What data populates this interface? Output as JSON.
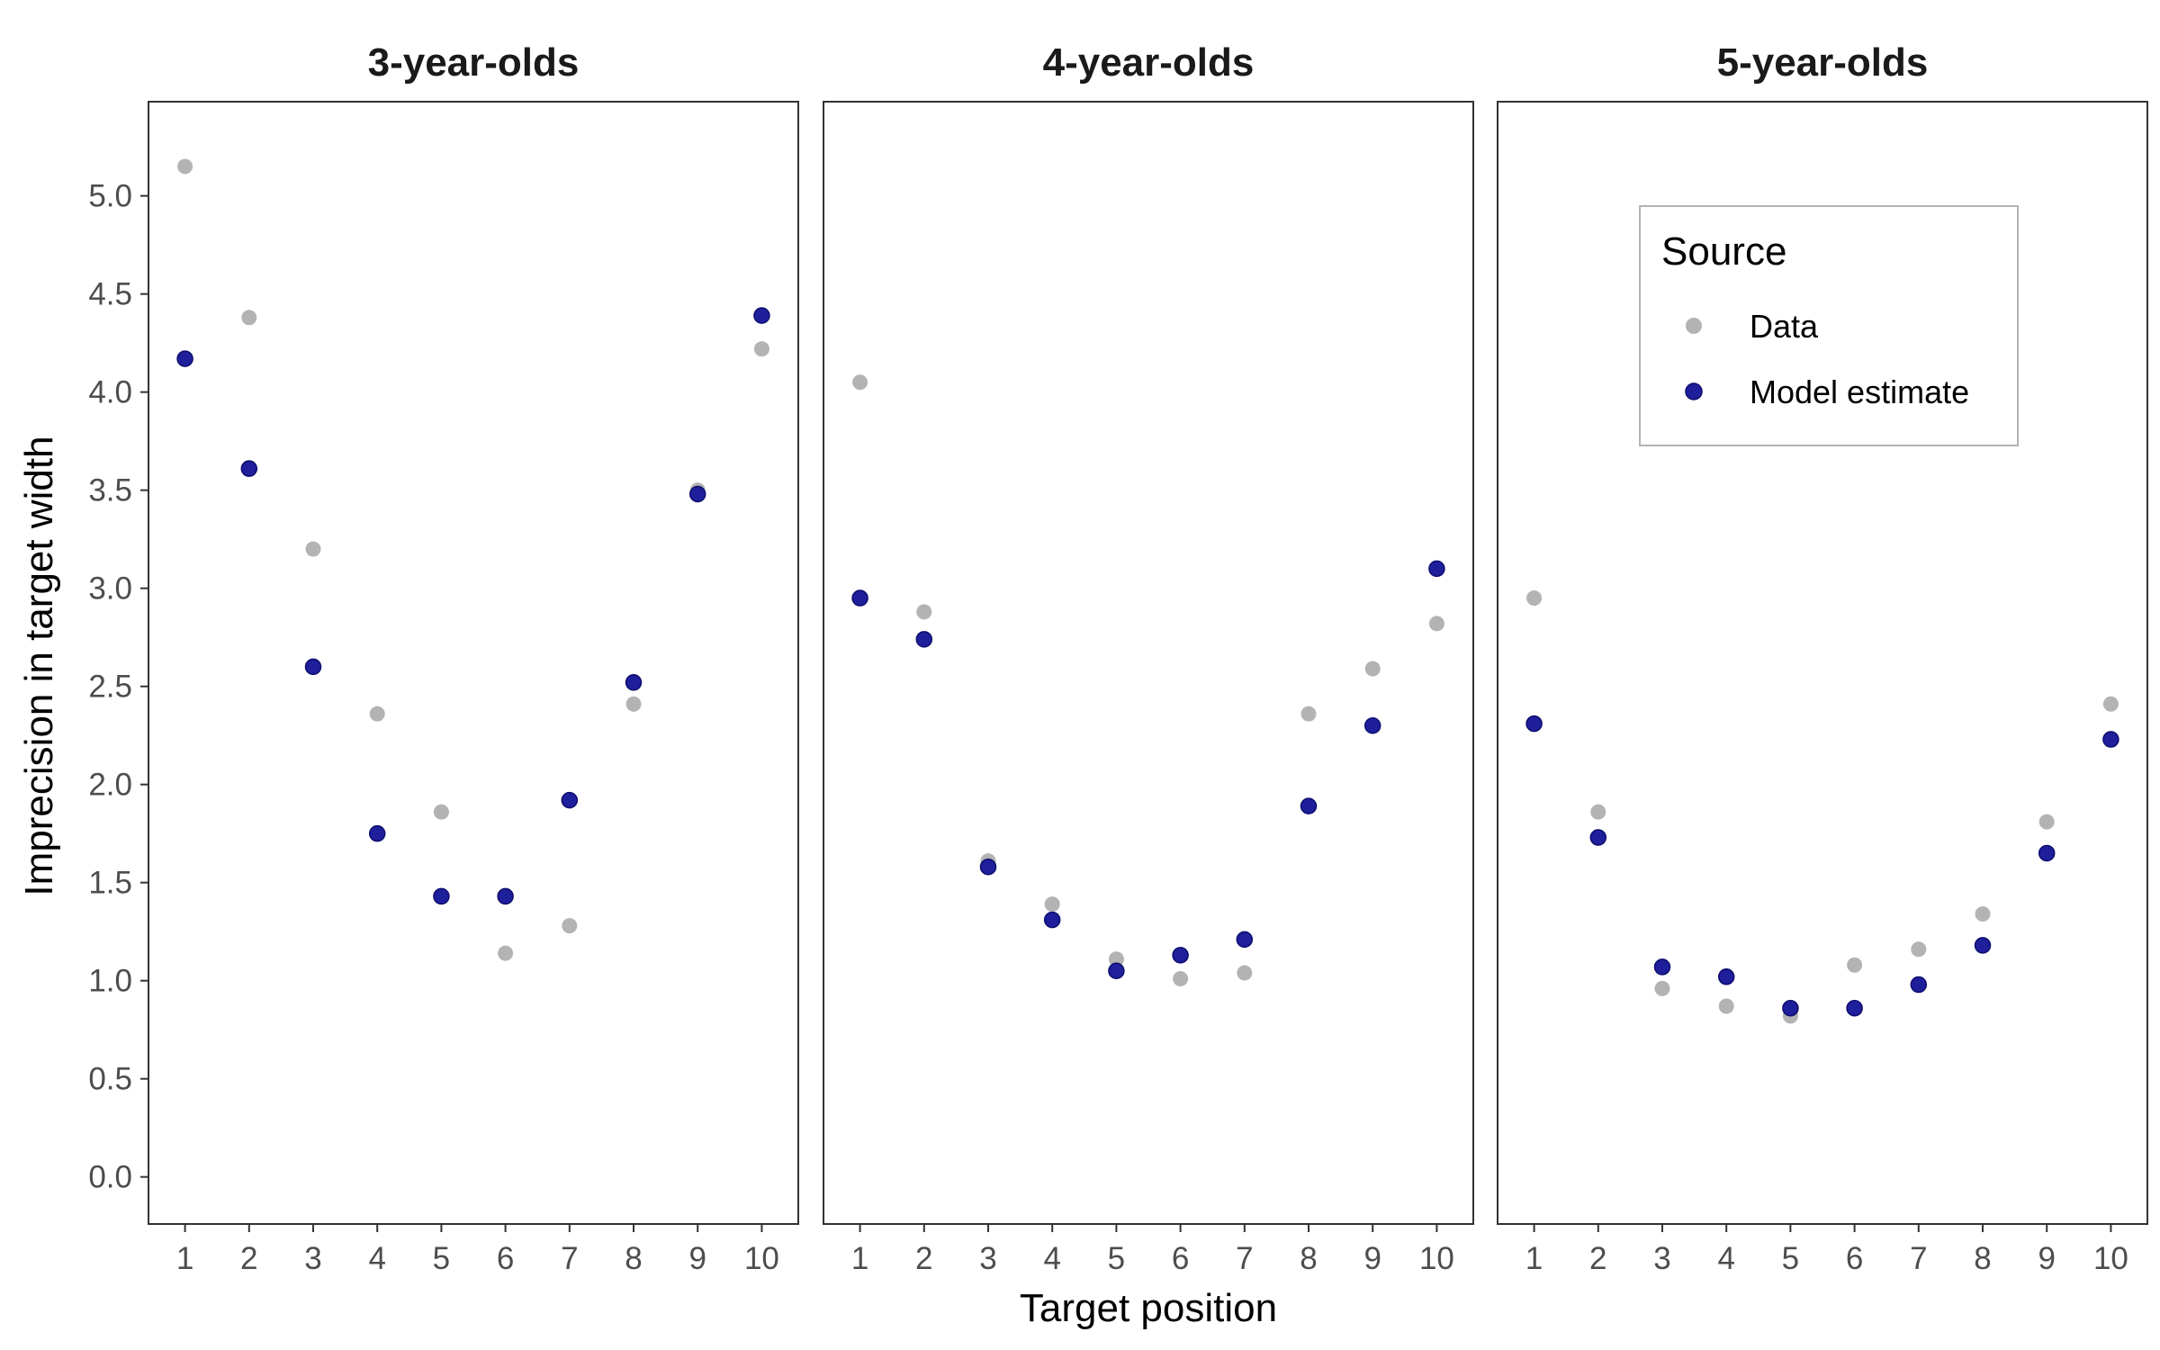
{
  "chart_data": {
    "type": "scatter",
    "xlabel": "Target position",
    "ylabel": "Imprecision in target width",
    "x": [
      1,
      2,
      3,
      4,
      5,
      6,
      7,
      8,
      9,
      10
    ],
    "x_ticks": [
      "1",
      "2",
      "3",
      "4",
      "5",
      "6",
      "7",
      "8",
      "9",
      "10"
    ],
    "y_ticks": [
      "0.0",
      "0.5",
      "1.0",
      "1.5",
      "2.0",
      "2.5",
      "3.0",
      "3.5",
      "4.0",
      "4.5",
      "5.0"
    ],
    "xlim": [
      0.43,
      10.57
    ],
    "ylim": [
      -0.24,
      5.48
    ],
    "grid": false,
    "legend": {
      "title": "Source",
      "placement": "top-right (inside third panel)",
      "entries": [
        "Data",
        "Model estimate"
      ]
    },
    "colors": {
      "Data": "#b3b3b3",
      "Model estimate": "#1f1f9c"
    },
    "panels": [
      {
        "title": "3-year-olds",
        "series": [
          {
            "name": "Data",
            "values": [
              5.15,
              4.38,
              3.2,
              2.36,
              1.86,
              1.14,
              1.28,
              2.41,
              3.5,
              4.22
            ]
          },
          {
            "name": "Model estimate",
            "values": [
              4.17,
              3.61,
              2.6,
              1.75,
              1.43,
              1.43,
              1.92,
              2.52,
              3.48,
              4.39
            ]
          }
        ]
      },
      {
        "title": "4-year-olds",
        "series": [
          {
            "name": "Data",
            "values": [
              4.05,
              2.88,
              1.61,
              1.39,
              1.11,
              1.01,
              1.04,
              2.36,
              2.59,
              2.82
            ]
          },
          {
            "name": "Model estimate",
            "values": [
              2.95,
              2.74,
              1.58,
              1.31,
              1.05,
              1.13,
              1.21,
              1.89,
              2.3,
              3.1
            ]
          }
        ]
      },
      {
        "title": "5-year-olds",
        "series": [
          {
            "name": "Data",
            "values": [
              2.95,
              1.86,
              0.96,
              0.87,
              0.82,
              1.08,
              1.16,
              1.34,
              1.81,
              2.41
            ]
          },
          {
            "name": "Model estimate",
            "values": [
              2.31,
              1.73,
              1.07,
              1.02,
              0.86,
              0.86,
              0.98,
              1.18,
              1.65,
              2.23
            ]
          }
        ]
      }
    ]
  }
}
